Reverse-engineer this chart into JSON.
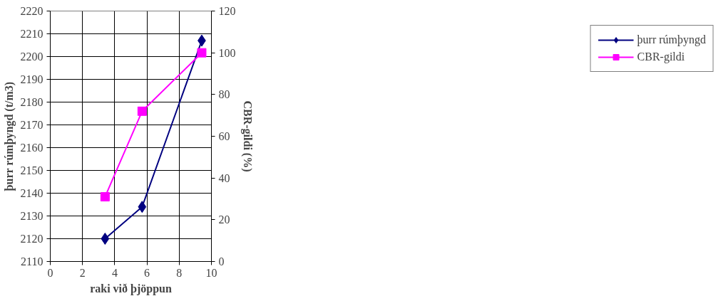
{
  "chart_data": {
    "type": "line",
    "xlabel": "raki við þjöppun",
    "ylabel": "þurr rúmþyngd (t/m3)",
    "y2label": "CBR-gildi (%)",
    "series": [
      {
        "name": "þurr rúmþyngd",
        "color": "#000080",
        "marker": "diamond",
        "x": [
          3.4,
          5.7,
          9.4
        ],
        "values": [
          2120,
          2134,
          2207
        ]
      },
      {
        "name": "CBR-gildi",
        "color": "#ff00ff",
        "marker": "square",
        "axis": "y2",
        "x": [
          3.4,
          5.7,
          9.4
        ],
        "values": [
          31,
          72,
          100
        ]
      }
    ],
    "xlim": [
      0,
      10
    ],
    "xticks": [
      0,
      2,
      4,
      6,
      8,
      10
    ],
    "ylim": [
      2110,
      2220
    ],
    "yticks": [
      2110,
      2120,
      2130,
      2140,
      2150,
      2160,
      2170,
      2180,
      2190,
      2200,
      2210,
      2220
    ],
    "y2lim": [
      0,
      120
    ],
    "y2ticks": [
      0,
      20,
      40,
      60,
      80,
      100,
      120
    ],
    "grid": true,
    "legend": "right",
    "line_style": "solid"
  }
}
